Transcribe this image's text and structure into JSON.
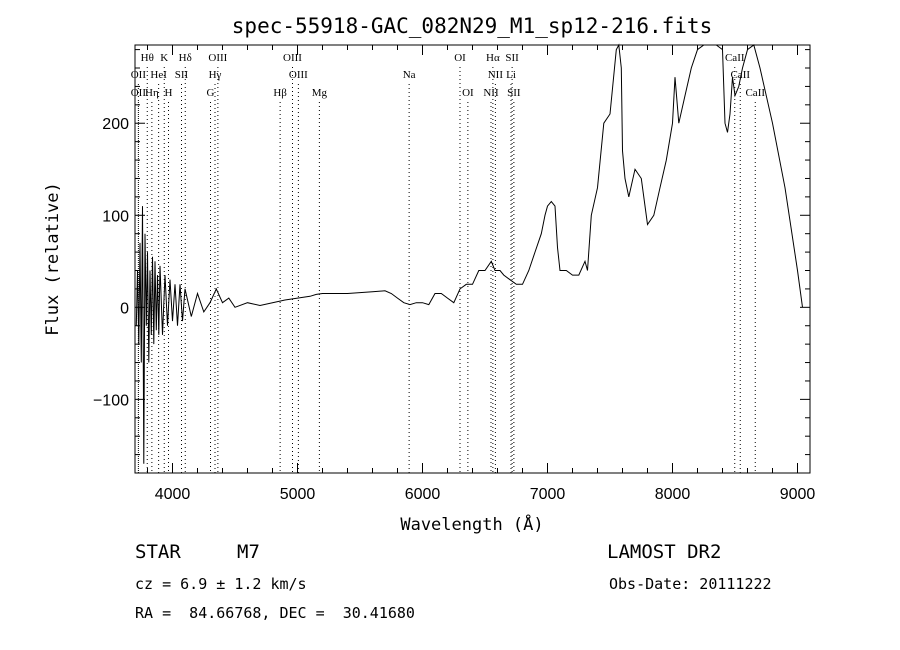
{
  "chart_data": {
    "type": "line",
    "title": "spec-55918-GAC_082N29_M1_sp12-216.fits",
    "xlabel": "Wavelength (Å)",
    "ylabel": "Flux (relative)",
    "xlim": [
      3700,
      9100
    ],
    "ylim": [
      -180,
      285
    ],
    "xticks": [
      4000,
      5000,
      6000,
      7000,
      8000,
      9000
    ],
    "yticks": [
      -100,
      0,
      100,
      200
    ],
    "series": [
      {
        "x": [
          3710,
          3720,
          3730,
          3740,
          3750,
          3760,
          3770,
          3780,
          3790,
          3800,
          3810,
          3820,
          3830,
          3840,
          3850,
          3860,
          3870,
          3880,
          3890,
          3900,
          3920,
          3940,
          3960,
          3980,
          4000,
          4020,
          4040,
          4060,
          4080,
          4100,
          4150,
          4200,
          4250,
          4300,
          4350,
          4400,
          4450,
          4500,
          4600,
          4700,
          4800,
          4900,
          5000,
          5100,
          5150,
          5200,
          5300,
          5400,
          5500,
          5600,
          5700,
          5750,
          5800,
          5850,
          5900,
          5950,
          6000,
          6050,
          6100,
          6150,
          6200,
          6250,
          6300,
          6350,
          6400,
          6450,
          6500,
          6550,
          6580,
          6620,
          6650,
          6700,
          6750,
          6800,
          6850,
          6900,
          6950,
          6980,
          7000,
          7030,
          7060,
          7080,
          7100,
          7120,
          7150,
          7200,
          7250,
          7300,
          7320,
          7350,
          7400,
          7450,
          7500,
          7550,
          7570,
          7590,
          7600,
          7620,
          7650,
          7700,
          7750,
          7800,
          7850,
          7900,
          7950,
          8000,
          8020,
          8050,
          8100,
          8150,
          8200,
          8250,
          8300,
          8350,
          8400,
          8420,
          8440,
          8460,
          8480,
          8500,
          8530,
          8560,
          8600,
          8650,
          8700,
          8800,
          8900,
          9000,
          9040
        ],
        "y": [
          -20,
          40,
          -40,
          70,
          -60,
          110,
          -170,
          80,
          -20,
          60,
          -60,
          40,
          -30,
          55,
          -40,
          50,
          -25,
          35,
          -30,
          45,
          -30,
          35,
          -20,
          30,
          -15,
          25,
          -20,
          25,
          -15,
          20,
          -10,
          15,
          -5,
          5,
          20,
          5,
          10,
          0,
          5,
          2,
          5,
          8,
          10,
          12,
          14,
          15,
          15,
          15,
          16,
          17,
          18,
          15,
          10,
          5,
          3,
          5,
          5,
          3,
          15,
          15,
          10,
          5,
          20,
          25,
          25,
          40,
          40,
          50,
          40,
          40,
          35,
          30,
          25,
          25,
          40,
          60,
          80,
          100,
          110,
          115,
          110,
          65,
          40,
          40,
          40,
          35,
          35,
          50,
          40,
          100,
          130,
          200,
          210,
          280,
          290,
          260,
          170,
          140,
          120,
          150,
          140,
          90,
          100,
          130,
          160,
          200,
          250,
          200,
          230,
          260,
          280,
          290,
          290,
          290,
          280,
          200,
          190,
          210,
          250,
          230,
          240,
          260,
          280,
          290,
          260,
          200,
          130,
          40,
          0
        ]
      }
    ],
    "spectral_lines": [
      {
        "label": "Hθ",
        "x": 3798,
        "row": 1
      },
      {
        "label": "K",
        "x": 3934,
        "row": 1
      },
      {
        "label": "Hδ",
        "x": 4102,
        "row": 1
      },
      {
        "label": "OIII",
        "x": 4363,
        "row": 1
      },
      {
        "label": "OIII",
        "x": 4960,
        "row": 1
      },
      {
        "label": "OI",
        "x": 6300,
        "row": 1
      },
      {
        "label": "Hα",
        "x": 6563,
        "row": 1
      },
      {
        "label": "SII",
        "x": 6717,
        "row": 1
      },
      {
        "label": "CaII",
        "x": 8498,
        "row": 1
      },
      {
        "label": "OII",
        "x": 3727,
        "row": 2
      },
      {
        "label": "HeI",
        "x": 3889,
        "row": 2
      },
      {
        "label": "SII",
        "x": 4072,
        "row": 2
      },
      {
        "label": "Hγ",
        "x": 4340,
        "row": 2
      },
      {
        "label": "OIII",
        "x": 5007,
        "row": 2
      },
      {
        "label": "Na",
        "x": 5893,
        "row": 2
      },
      {
        "label": "NII",
        "x": 6583,
        "row": 2
      },
      {
        "label": "Li",
        "x": 6708,
        "row": 2
      },
      {
        "label": "CaII",
        "x": 8542,
        "row": 2
      },
      {
        "label": "OII",
        "x": 3727,
        "row": 3
      },
      {
        "label": "Hη",
        "x": 3835,
        "row": 3
      },
      {
        "label": "H",
        "x": 3968,
        "row": 3
      },
      {
        "label": "G",
        "x": 4304,
        "row": 3
      },
      {
        "label": "Hβ",
        "x": 4861,
        "row": 3
      },
      {
        "label": "Mg",
        "x": 5175,
        "row": 3
      },
      {
        "label": "OI",
        "x": 6363,
        "row": 3
      },
      {
        "label": "NII",
        "x": 6548,
        "row": 3
      },
      {
        "label": "SII",
        "x": 6731,
        "row": 3
      },
      {
        "label": "CaII",
        "x": 8662,
        "row": 3
      }
    ]
  },
  "info": {
    "object_class": "STAR",
    "subclass": "M7",
    "survey": "LAMOST DR2",
    "redshift": "cz = 6.9 ± 1.2 km/s",
    "obs_date": "Obs-Date: 20111222",
    "coords": "RA =  84.66768, DEC =  30.41680"
  }
}
